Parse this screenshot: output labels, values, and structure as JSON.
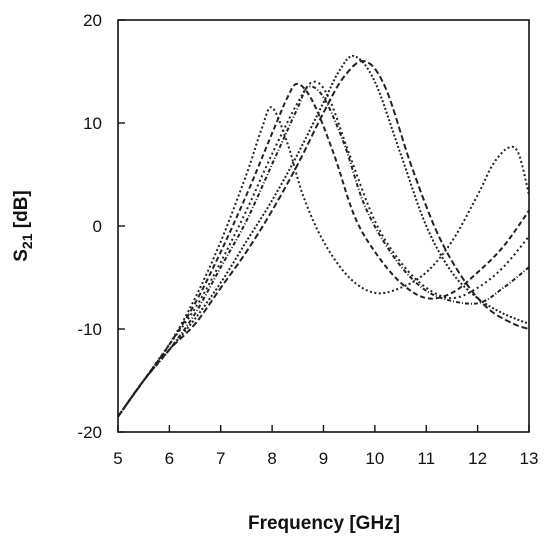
{
  "chart_data": {
    "type": "line",
    "xlabel": "Frequency [GHz]",
    "ylabel_main": "S",
    "ylabel_sub": "21",
    "ylabel_unit": "[dB]",
    "xlim": [
      5,
      13
    ],
    "ylim": [
      -20,
      20
    ],
    "xticks": [
      5,
      6,
      7,
      8,
      9,
      10,
      11,
      12,
      13
    ],
    "yticks": [
      -20,
      -10,
      0,
      10,
      20
    ],
    "grid": false,
    "legend": "none",
    "series": [
      {
        "dash": "2,2.5",
        "x": [
          5,
          5.5,
          6,
          6.5,
          7,
          7.5,
          7.8,
          8,
          8.3,
          8.6,
          9,
          9.5,
          10,
          10.5,
          11,
          11.5,
          12,
          12.3,
          12.6,
          12.8,
          13
        ],
        "y": [
          -18.5,
          -15,
          -11.5,
          -7,
          -1.5,
          5,
          9.5,
          11.5,
          8,
          3,
          -1.5,
          -5,
          -6.5,
          -6,
          -4.5,
          -1.5,
          3,
          6,
          7.6,
          7,
          3
        ]
      },
      {
        "dash": "5,3",
        "x": [
          5,
          5.5,
          6,
          6.5,
          7,
          7.5,
          8,
          8.3,
          8.5,
          8.8,
          9.2,
          9.6,
          10,
          10.5,
          11,
          11.5,
          12,
          12.5,
          13
        ],
        "y": [
          -18.5,
          -15,
          -11.5,
          -7.5,
          -2.5,
          3,
          9,
          12.5,
          13.8,
          12,
          7,
          1,
          -2.5,
          -5.5,
          -7,
          -6.5,
          -4.5,
          -2,
          1.5
        ]
      },
      {
        "dash": "2,3",
        "x": [
          5,
          5.5,
          6,
          6.5,
          7,
          7.5,
          8,
          8.5,
          8.8,
          9.1,
          9.5,
          10,
          10.5,
          11,
          11.5,
          12,
          12.5,
          13
        ],
        "y": [
          -18.5,
          -15,
          -11.5,
          -8,
          -3.5,
          1.5,
          7,
          12,
          14,
          12.5,
          7,
          0.5,
          -3.5,
          -6,
          -7,
          -6,
          -4,
          -1
        ]
      },
      {
        "dash": "4,2,1,2",
        "x": [
          5,
          5.5,
          6,
          6.5,
          7,
          7.5,
          8,
          8.5,
          8.7,
          9,
          9.4,
          9.8,
          10.3,
          10.8,
          11.3,
          12,
          12.5,
          13
        ],
        "y": [
          -18.5,
          -15,
          -12,
          -8.5,
          -4,
          0.5,
          6,
          11.5,
          13.5,
          12.5,
          8,
          2,
          -2.5,
          -5.5,
          -7,
          -7.5,
          -6,
          -4
        ]
      },
      {
        "dash": "2,2",
        "x": [
          5,
          5.5,
          6,
          6.5,
          7,
          7.5,
          8,
          8.5,
          9,
          9.3,
          9.6,
          10,
          10.5,
          11,
          11.5,
          12,
          12.5,
          13
        ],
        "y": [
          -18.5,
          -15,
          -12,
          -9,
          -5.5,
          -1.5,
          2.5,
          7,
          12,
          15,
          16.5,
          14,
          7,
          0,
          -4.5,
          -7,
          -8.5,
          -9.5
        ]
      },
      {
        "dash": "6,3",
        "x": [
          5,
          5.5,
          6,
          6.5,
          7,
          7.5,
          8,
          8.5,
          9,
          9.4,
          9.8,
          10.2,
          10.7,
          11.2,
          11.7,
          12.2,
          12.7,
          13
        ],
        "y": [
          -18.5,
          -15,
          -12,
          -9.5,
          -6,
          -2.5,
          1.5,
          6,
          11,
          14.5,
          16,
          13.5,
          6,
          -0.5,
          -5,
          -8,
          -9.5,
          -10
        ]
      }
    ]
  }
}
